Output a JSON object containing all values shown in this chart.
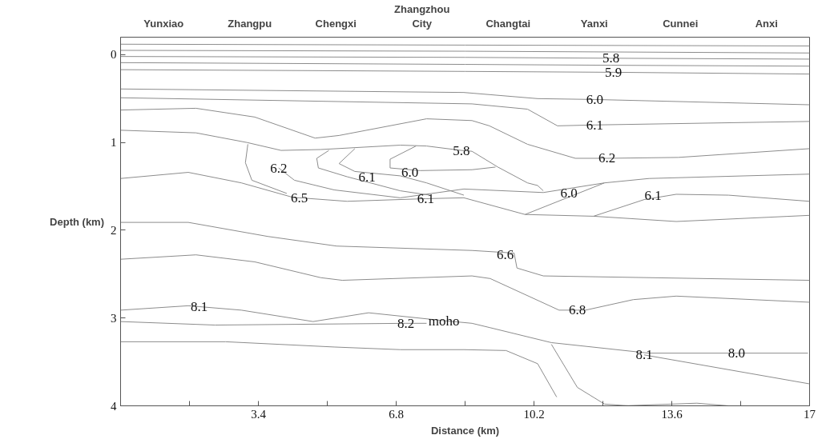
{
  "chart_data": {
    "type": "line",
    "xlabel": "Distance (km)",
    "ylabel": "Depth (km)",
    "xlim": [
      0,
      17
    ],
    "ylim": [
      4,
      -0.2
    ],
    "xticks": [
      {
        "value": 0,
        "label": null
      },
      {
        "value": 1.7,
        "label": null
      },
      3.4,
      {
        "value": 5.1,
        "label": null
      },
      6.8,
      {
        "value": 8.5,
        "label": null
      },
      10.2,
      {
        "value": 11.9,
        "label": null
      },
      13.6,
      {
        "value": 15.3,
        "label": null
      },
      17
    ],
    "yticks": [
      0,
      1,
      2,
      3,
      4
    ],
    "grid": false,
    "marker": "none",
    "line_style": "solid",
    "series": [
      {
        "color": "#8c8c8c",
        "x": [
          0,
          8.5,
          17
        ],
        "values": [
          -0.12,
          -0.11,
          -0.1
        ]
      },
      {
        "color": "#8c8c8c",
        "x": [
          0,
          8.5,
          17
        ],
        "values": [
          -0.05,
          -0.04,
          -0.02
        ]
      },
      {
        "color": "#8c8c8c",
        "x": [
          0,
          8.5,
          12.1,
          17
        ],
        "values": [
          0.02,
          0.03,
          0.04,
          0.05
        ]
      },
      {
        "color": "#8c8c8c",
        "x": [
          0,
          8.5,
          12.1,
          17
        ],
        "values": [
          0.09,
          0.11,
          0.12,
          0.13
        ]
      },
      {
        "color": "#8c8c8c",
        "x": [
          0,
          8.5,
          12.16,
          17
        ],
        "values": [
          0.17,
          0.19,
          0.2,
          0.22
        ]
      },
      {
        "color": "#8c8c8c",
        "x": [
          0,
          8.47,
          10.29,
          11.7,
          17
        ],
        "values": [
          0.39,
          0.43,
          0.5,
          0.51,
          0.57
        ]
      },
      {
        "color": "#8c8c8c",
        "x": [
          0,
          8.67,
          10.04,
          10.78,
          11.7,
          17
        ],
        "values": [
          0.49,
          0.56,
          0.62,
          0.81,
          0.8,
          0.76
        ]
      },
      {
        "color": "#8c8c8c",
        "x": [
          0,
          1.86,
          3.31,
          4.8,
          5.39,
          7.55,
          8.67,
          9.1,
          10.04,
          11.22,
          12.0,
          13.76,
          17
        ],
        "values": [
          0.63,
          0.61,
          0.71,
          0.95,
          0.92,
          0.73,
          0.75,
          0.81,
          1.02,
          1.18,
          1.18,
          1.17,
          1.07
        ]
      },
      {
        "color": "#8c8c8c",
        "x": [
          0,
          1.86,
          3.12,
          3.96,
          4.94,
          6.9,
          7.55,
          8.41,
          8.67,
          9.31,
          10.04,
          10.29,
          10.43
        ],
        "values": [
          0.86,
          0.89,
          1.0,
          1.09,
          1.08,
          1.03,
          1.04,
          1.09,
          1.1,
          1.28,
          1.46,
          1.49,
          1.55
        ]
      },
      {
        "color": "#8c8c8c",
        "x": [
          3.9,
          4.29,
          5.27,
          6.9,
          8.47,
          10.43,
          11.94,
          13.04,
          17
        ],
        "values": [
          1.29,
          1.43,
          1.54,
          1.63,
          1.53,
          1.57,
          1.46,
          1.41,
          1.36
        ]
      },
      {
        "color": "#8c8c8c",
        "x": [
          0,
          1.67,
          2.98,
          4.29,
          4.41,
          5.59,
          7.53,
          8.47,
          9.98,
          11.67,
          13.71,
          17
        ],
        "values": [
          1.41,
          1.34,
          1.46,
          1.63,
          1.63,
          1.67,
          1.64,
          1.63,
          1.82,
          1.84,
          1.9,
          1.83
        ]
      },
      {
        "color": "#8c8c8c",
        "x": [
          9.98,
          11.94
        ],
        "values": [
          1.82,
          1.46
        ]
      },
      {
        "color": "#8c8c8c",
        "x": [
          11.67,
          12.92,
          13.71,
          15,
          17
        ],
        "values": [
          1.84,
          1.65,
          1.59,
          1.6,
          1.67
        ]
      },
      {
        "color": "#8c8c8c",
        "x": [
          3.14,
          3.08,
          3.24,
          4.1
        ],
        "values": [
          1.02,
          1.23,
          1.43,
          1.58
        ]
      },
      {
        "color": "#8c8c8c",
        "x": [
          5.14,
          4.84,
          4.88,
          5.59,
          6.9,
          7.63
        ],
        "values": [
          1.09,
          1.18,
          1.29,
          1.39,
          1.55,
          1.6
        ]
      },
      {
        "color": "#8c8c8c",
        "x": [
          5.78,
          5.39,
          5.78,
          6.9,
          7.55,
          8.47
        ],
        "values": [
          1.07,
          1.24,
          1.33,
          1.38,
          1.46,
          1.6
        ]
      },
      {
        "color": "#8c8c8c",
        "x": [
          7.29,
          6.65,
          6.65,
          7.39,
          8.67,
          9.25
        ],
        "values": [
          1.04,
          1.19,
          1.29,
          1.32,
          1.31,
          1.28
        ]
      },
      {
        "color": "#8c8c8c",
        "x": [
          0,
          1.67,
          3.63,
          5.33,
          8.67,
          9.71,
          9.78,
          10.43,
          17
        ],
        "values": [
          1.91,
          1.91,
          2.07,
          2.18,
          2.23,
          2.26,
          2.43,
          2.52,
          2.57
        ]
      },
      {
        "color": "#8c8c8c",
        "x": [
          0,
          1.86,
          3.31,
          4.94,
          5.47,
          8.67,
          9.12,
          10.82,
          11.27,
          11.47,
          12.65,
          13.71,
          17
        ],
        "values": [
          2.33,
          2.28,
          2.36,
          2.54,
          2.57,
          2.52,
          2.55,
          2.91,
          2.91,
          2.91,
          2.79,
          2.75,
          2.82
        ]
      },
      {
        "color": "#8c8c8c",
        "x": [
          0,
          1.67,
          1.94,
          2.98,
          4.75,
          6.12,
          7.98,
          8.67,
          9.12,
          10.63,
          13.04,
          15.2,
          16.96
        ],
        "values": [
          2.91,
          2.86,
          2.87,
          2.91,
          3.04,
          2.94,
          3.03,
          3.06,
          3.11,
          3.28,
          3.4,
          3.4,
          3.4
        ]
      },
      {
        "color": "#8c8c8c",
        "x": [
          0,
          2.33,
          7.04,
          7.55
        ],
        "values": [
          3.04,
          3.08,
          3.06,
          3.06
        ]
      },
      {
        "color": "#8c8c8c",
        "x": [
          0,
          2.59,
          5.27,
          6.9,
          8.47,
          9.51,
          10.29,
          10.76
        ],
        "values": [
          3.27,
          3.27,
          3.33,
          3.36,
          3.36,
          3.37,
          3.52,
          3.9
        ]
      },
      {
        "color": "#8c8c8c",
        "x": [
          10.63,
          11.27,
          11.94,
          12.53
        ],
        "values": [
          3.3,
          3.79,
          3.98,
          4.0
        ]
      },
      {
        "color": "#8c8c8c",
        "x": [
          12.92,
          17
        ],
        "values": [
          3.42,
          3.75
        ]
      },
      {
        "color": "#8c8c8c",
        "x": [
          12.39,
          14.22,
          15
        ],
        "values": [
          4.0,
          3.97,
          4.0
        ]
      }
    ],
    "annotations": [
      "Yunxiao",
      "Zhangpu",
      "Chengxi",
      "Zhangzhou\nCity",
      "Changtai",
      "Yanxi",
      "Cunnei",
      "Anxi",
      {
        "text": "5.8",
        "x": 12.1,
        "y": 0.04
      },
      {
        "text": "5.9",
        "x": 12.16,
        "y": 0.2
      },
      {
        "text": "6.0",
        "x": 11.7,
        "y": 0.51
      },
      {
        "text": "6.1",
        "x": 11.7,
        "y": 0.8
      },
      {
        "text": "6.2",
        "x": 12.0,
        "y": 1.18
      },
      {
        "text": "6.0",
        "x": 11.06,
        "y": 1.58
      },
      {
        "text": "6.1",
        "x": 13.14,
        "y": 1.6
      },
      {
        "text": "6.2",
        "x": 3.9,
        "y": 1.29
      },
      {
        "text": "6.1",
        "x": 6.08,
        "y": 1.39
      },
      {
        "text": "6.0",
        "x": 7.14,
        "y": 1.34
      },
      {
        "text": "5.8",
        "x": 8.41,
        "y": 1.09
      },
      {
        "text": "6.5",
        "x": 4.41,
        "y": 1.63
      },
      {
        "text": "6.1",
        "x": 7.53,
        "y": 1.64
      },
      {
        "text": "6.6",
        "x": 9.49,
        "y": 2.28
      },
      {
        "text": "moho",
        "x": 7.98,
        "y": 3.03
      },
      {
        "text": "6.8",
        "x": 11.27,
        "y": 2.91
      },
      {
        "text": "8.1",
        "x": 1.94,
        "y": 2.87
      },
      {
        "text": "8.2",
        "x": 7.04,
        "y": 3.06
      },
      {
        "text": "8.0",
        "x": 15.2,
        "y": 3.4
      },
      {
        "text": "8.1",
        "x": 12.92,
        "y": 3.42
      }
    ]
  }
}
